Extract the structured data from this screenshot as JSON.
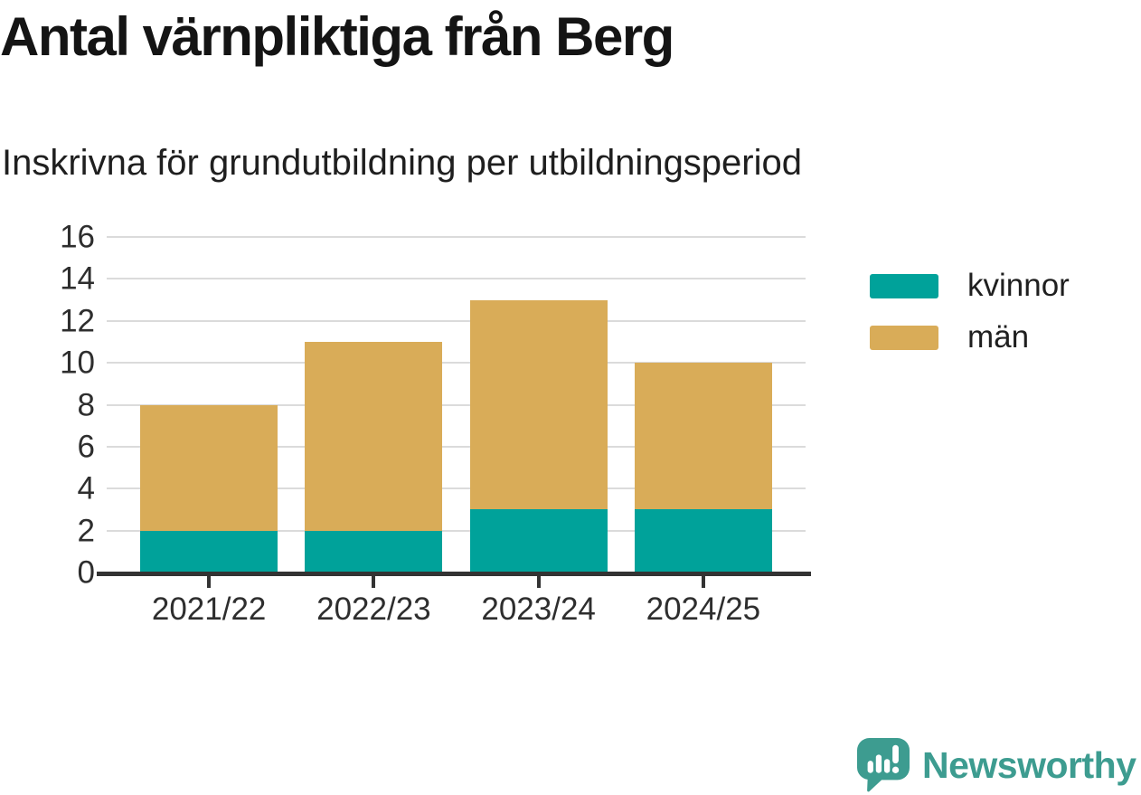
{
  "header": {
    "title": "Antal värnpliktiga från Berg",
    "subtitle": "Inskrivna för grundutbildning per utbildningsperiod"
  },
  "chart_data": {
    "type": "bar",
    "stacked": true,
    "title": "Antal värnpliktiga från Berg",
    "subtitle": "Inskrivna för grundutbildning per utbildningsperiod",
    "categories": [
      "2021/22",
      "2022/23",
      "2023/24",
      "2024/25"
    ],
    "series": [
      {
        "name": "kvinnor",
        "color": "#00a29a",
        "values": [
          2,
          2,
          3,
          3
        ]
      },
      {
        "name": "män",
        "color": "#d9ac58",
        "values": [
          6,
          9,
          10,
          7
        ]
      }
    ],
    "totals": [
      8,
      11,
      13,
      10
    ],
    "xlabel": "",
    "ylabel": "",
    "ylim": [
      0,
      16
    ],
    "y_ticks": [
      0,
      2,
      4,
      6,
      8,
      10,
      12,
      14,
      16
    ],
    "grid": "horizontal",
    "legend_position": "right",
    "grid_color": "#dbdbdb",
    "axis_color": "#333333"
  },
  "footer": {
    "brand": "Newsworthy",
    "brand_color": "#3d9c90",
    "logo_icon": "bar-chart-speech-bubble-icon"
  }
}
